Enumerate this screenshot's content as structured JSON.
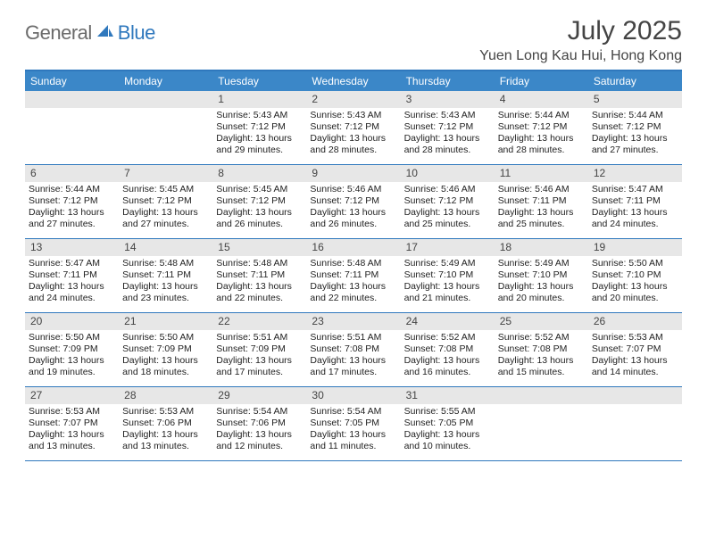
{
  "brand": {
    "general": "General",
    "blue": "Blue"
  },
  "title": "July 2025",
  "location": "Yuen Long Kau Hui, Hong Kong",
  "colors": {
    "header_bar": "#3b87c8",
    "rule": "#2f78bd",
    "daynum_bg": "#e7e7e7",
    "text": "#222222",
    "title_text": "#444444",
    "logo_grey": "#6b6b6b",
    "logo_blue": "#2f78bd",
    "background": "#ffffff"
  },
  "days_of_week": [
    "Sunday",
    "Monday",
    "Tuesday",
    "Wednesday",
    "Thursday",
    "Friday",
    "Saturday"
  ],
  "weeks": [
    [
      null,
      null,
      {
        "n": "1",
        "sr": "5:43 AM",
        "ss": "7:12 PM",
        "dl": "13 hours and 29 minutes."
      },
      {
        "n": "2",
        "sr": "5:43 AM",
        "ss": "7:12 PM",
        "dl": "13 hours and 28 minutes."
      },
      {
        "n": "3",
        "sr": "5:43 AM",
        "ss": "7:12 PM",
        "dl": "13 hours and 28 minutes."
      },
      {
        "n": "4",
        "sr": "5:44 AM",
        "ss": "7:12 PM",
        "dl": "13 hours and 28 minutes."
      },
      {
        "n": "5",
        "sr": "5:44 AM",
        "ss": "7:12 PM",
        "dl": "13 hours and 27 minutes."
      }
    ],
    [
      {
        "n": "6",
        "sr": "5:44 AM",
        "ss": "7:12 PM",
        "dl": "13 hours and 27 minutes."
      },
      {
        "n": "7",
        "sr": "5:45 AM",
        "ss": "7:12 PM",
        "dl": "13 hours and 27 minutes."
      },
      {
        "n": "8",
        "sr": "5:45 AM",
        "ss": "7:12 PM",
        "dl": "13 hours and 26 minutes."
      },
      {
        "n": "9",
        "sr": "5:46 AM",
        "ss": "7:12 PM",
        "dl": "13 hours and 26 minutes."
      },
      {
        "n": "10",
        "sr": "5:46 AM",
        "ss": "7:12 PM",
        "dl": "13 hours and 25 minutes."
      },
      {
        "n": "11",
        "sr": "5:46 AM",
        "ss": "7:11 PM",
        "dl": "13 hours and 25 minutes."
      },
      {
        "n": "12",
        "sr": "5:47 AM",
        "ss": "7:11 PM",
        "dl": "13 hours and 24 minutes."
      }
    ],
    [
      {
        "n": "13",
        "sr": "5:47 AM",
        "ss": "7:11 PM",
        "dl": "13 hours and 24 minutes."
      },
      {
        "n": "14",
        "sr": "5:48 AM",
        "ss": "7:11 PM",
        "dl": "13 hours and 23 minutes."
      },
      {
        "n": "15",
        "sr": "5:48 AM",
        "ss": "7:11 PM",
        "dl": "13 hours and 22 minutes."
      },
      {
        "n": "16",
        "sr": "5:48 AM",
        "ss": "7:11 PM",
        "dl": "13 hours and 22 minutes."
      },
      {
        "n": "17",
        "sr": "5:49 AM",
        "ss": "7:10 PM",
        "dl": "13 hours and 21 minutes."
      },
      {
        "n": "18",
        "sr": "5:49 AM",
        "ss": "7:10 PM",
        "dl": "13 hours and 20 minutes."
      },
      {
        "n": "19",
        "sr": "5:50 AM",
        "ss": "7:10 PM",
        "dl": "13 hours and 20 minutes."
      }
    ],
    [
      {
        "n": "20",
        "sr": "5:50 AM",
        "ss": "7:09 PM",
        "dl": "13 hours and 19 minutes."
      },
      {
        "n": "21",
        "sr": "5:50 AM",
        "ss": "7:09 PM",
        "dl": "13 hours and 18 minutes."
      },
      {
        "n": "22",
        "sr": "5:51 AM",
        "ss": "7:09 PM",
        "dl": "13 hours and 17 minutes."
      },
      {
        "n": "23",
        "sr": "5:51 AM",
        "ss": "7:08 PM",
        "dl": "13 hours and 17 minutes."
      },
      {
        "n": "24",
        "sr": "5:52 AM",
        "ss": "7:08 PM",
        "dl": "13 hours and 16 minutes."
      },
      {
        "n": "25",
        "sr": "5:52 AM",
        "ss": "7:08 PM",
        "dl": "13 hours and 15 minutes."
      },
      {
        "n": "26",
        "sr": "5:53 AM",
        "ss": "7:07 PM",
        "dl": "13 hours and 14 minutes."
      }
    ],
    [
      {
        "n": "27",
        "sr": "5:53 AM",
        "ss": "7:07 PM",
        "dl": "13 hours and 13 minutes."
      },
      {
        "n": "28",
        "sr": "5:53 AM",
        "ss": "7:06 PM",
        "dl": "13 hours and 13 minutes."
      },
      {
        "n": "29",
        "sr": "5:54 AM",
        "ss": "7:06 PM",
        "dl": "13 hours and 12 minutes."
      },
      {
        "n": "30",
        "sr": "5:54 AM",
        "ss": "7:05 PM",
        "dl": "13 hours and 11 minutes."
      },
      {
        "n": "31",
        "sr": "5:55 AM",
        "ss": "7:05 PM",
        "dl": "13 hours and 10 minutes."
      },
      null,
      null
    ]
  ],
  "labels": {
    "sunrise": "Sunrise:",
    "sunset": "Sunset:",
    "daylight": "Daylight:"
  }
}
